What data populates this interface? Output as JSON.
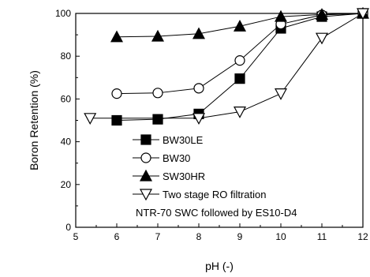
{
  "chart_data": {
    "type": "line",
    "xlabel": "pH (-)",
    "ylabel": "Boron Retention (%)",
    "xlim": [
      5,
      12
    ],
    "ylim": [
      0,
      100
    ],
    "xticks": [
      5,
      6,
      7,
      8,
      9,
      10,
      11,
      12
    ],
    "yticks": [
      0,
      20,
      40,
      60,
      80,
      100
    ],
    "grid": false,
    "legend_position": "bottom-right",
    "annotation": "NTR-70 SWC followed by ES10-D4",
    "series": [
      {
        "name": "BW30LE",
        "marker": "filled-square",
        "x": [
          6,
          7,
          8,
          9,
          10,
          11,
          12
        ],
        "y": [
          50,
          50.5,
          53,
          69.5,
          93,
          98.5,
          100
        ]
      },
      {
        "name": "BW30",
        "marker": "open-circle",
        "x": [
          6,
          7,
          8,
          9,
          10,
          11,
          12
        ],
        "y": [
          62.5,
          62.8,
          65,
          78,
          95,
          99.3,
          100
        ]
      },
      {
        "name": "SW30HR",
        "marker": "filled-triangle",
        "x": [
          6,
          7,
          8,
          9,
          10,
          11,
          12
        ],
        "y": [
          89,
          89.3,
          90.5,
          94,
          98.5,
          99.5,
          100
        ]
      },
      {
        "name": "Two stage RO filtration",
        "marker": "open-triangle-down",
        "x": [
          5.35,
          8,
          9,
          10,
          11,
          12
        ],
        "y": [
          51,
          51,
          54,
          62.5,
          88.5,
          100
        ]
      }
    ]
  }
}
